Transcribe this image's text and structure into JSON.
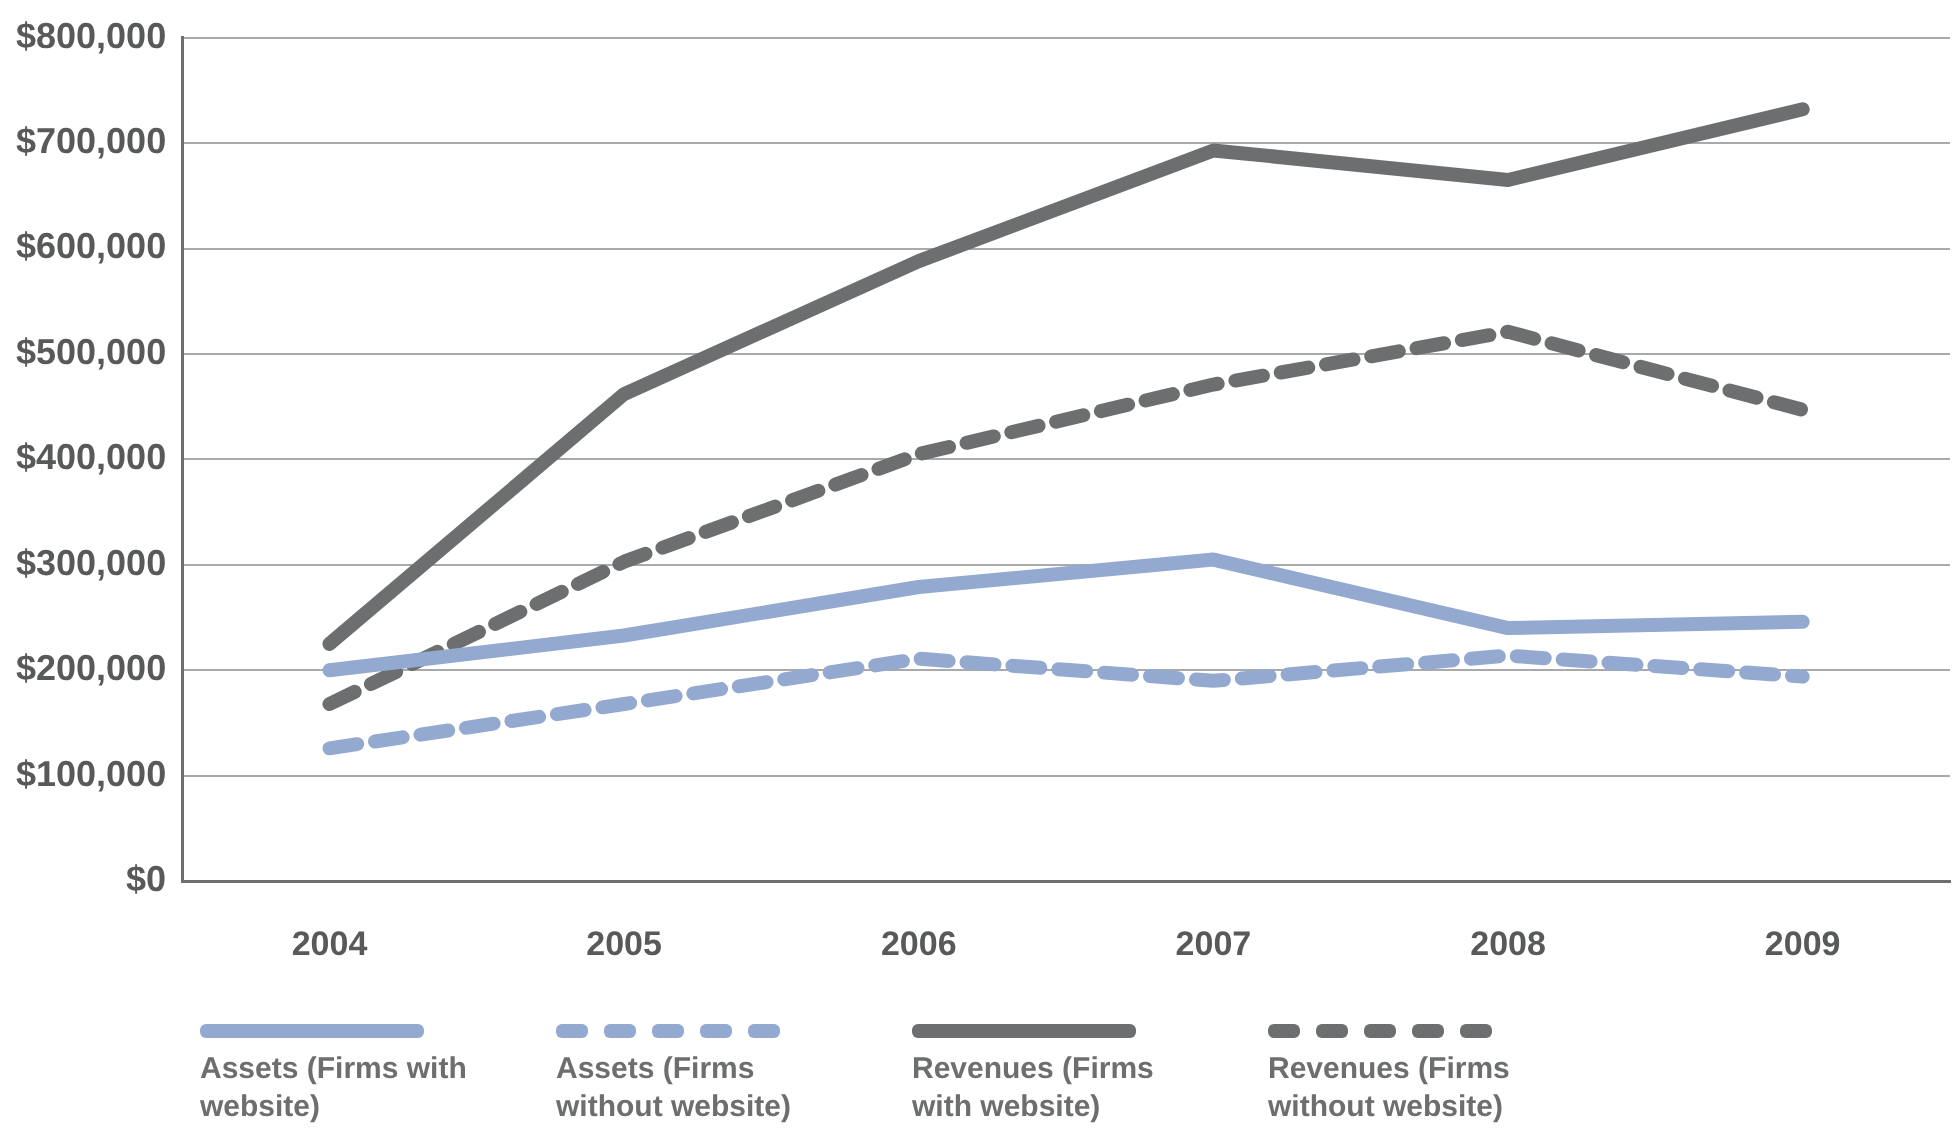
{
  "chart_data": {
    "type": "line",
    "categories": [
      "2004",
      "2005",
      "2006",
      "2007",
      "2008",
      "2009"
    ],
    "series": [
      {
        "name": "Assets (Firms with website)",
        "color": "#94a9cf",
        "line_style": "solid",
        "values": [
          200000,
          233000,
          279000,
          305000,
          240000,
          246000
        ]
      },
      {
        "name": "Assets (Firms without website)",
        "color": "#94a9cf",
        "line_style": "dashed",
        "values": [
          126000,
          168000,
          211000,
          190000,
          214000,
          194000
        ]
      },
      {
        "name": "Revenues (Firms with website)",
        "color": "#6d6e70",
        "line_style": "solid",
        "values": [
          225000,
          462000,
          588000,
          693000,
          665000,
          732000
        ]
      },
      {
        "name": "Revenues (Firms without website)",
        "color": "#6d6e70",
        "line_style": "dashed",
        "values": [
          168000,
          303000,
          405000,
          471000,
          521000,
          447000
        ]
      }
    ],
    "ylim": [
      0,
      800000
    ],
    "yticks": [
      {
        "value": 0,
        "label": "$0"
      },
      {
        "value": 100000,
        "label": "$100,000"
      },
      {
        "value": 200000,
        "label": "$200,000"
      },
      {
        "value": 300000,
        "label": "$300,000"
      },
      {
        "value": 400000,
        "label": "$400,000"
      },
      {
        "value": 500000,
        "label": "$500,000"
      },
      {
        "value": 600000,
        "label": "$600,000"
      },
      {
        "value": 700000,
        "label": "$700,000"
      },
      {
        "value": 800000,
        "label": "$800,000"
      }
    ],
    "grid": "y",
    "legend": "bottom",
    "marker": "none"
  }
}
